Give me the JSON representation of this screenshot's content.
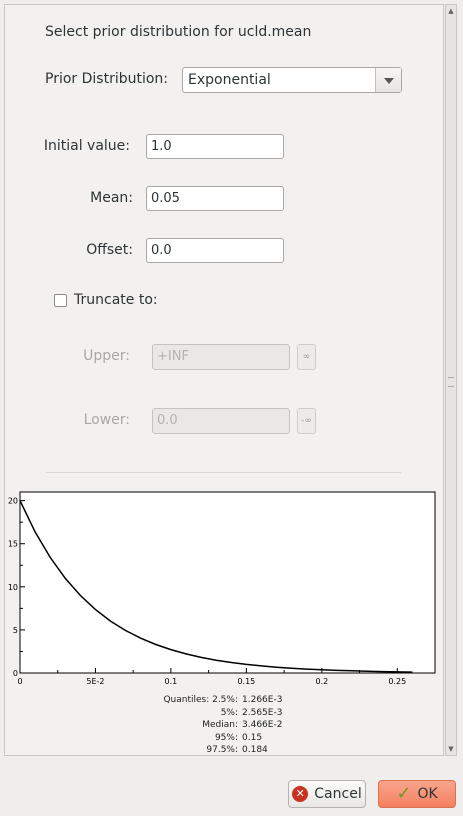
{
  "header": {
    "title": "Select prior distribution for ucld.mean"
  },
  "prior": {
    "label": "Prior Distribution:",
    "selected": "Exponential"
  },
  "params": {
    "initial": {
      "label": "Initial value:",
      "value": "1.0"
    },
    "mean": {
      "label": "Mean:",
      "value": "0.05"
    },
    "offset": {
      "label": "Offset:",
      "value": "0.0"
    }
  },
  "truncate": {
    "label": "Truncate to:",
    "checked": false,
    "upper": {
      "label": "Upper:",
      "value": "+INF",
      "button": "∞"
    },
    "lower": {
      "label": "Lower:",
      "value": "0.0",
      "button": "-∞"
    }
  },
  "chart_data": {
    "type": "line",
    "title": "",
    "xlabel": "",
    "ylabel": "",
    "xlim": [
      0,
      0.275
    ],
    "ylim": [
      0,
      21
    ],
    "xticks": [
      {
        "value": 0,
        "label": "0"
      },
      {
        "value": 0.05,
        "label": "5E-2"
      },
      {
        "value": 0.1,
        "label": "0.1"
      },
      {
        "value": 0.15,
        "label": "0.15"
      },
      {
        "value": 0.2,
        "label": "0.2"
      },
      {
        "value": 0.25,
        "label": "0.25"
      }
    ],
    "yticks": [
      {
        "value": 0,
        "label": "0"
      },
      {
        "value": 5,
        "label": "5"
      },
      {
        "value": 10,
        "label": "10"
      },
      {
        "value": 15,
        "label": "15"
      },
      {
        "value": 20,
        "label": "20"
      }
    ],
    "series": [
      {
        "values_x": [
          0,
          0.01,
          0.02,
          0.03,
          0.04,
          0.05,
          0.06,
          0.07,
          0.08,
          0.09,
          0.1,
          0.11,
          0.12,
          0.13,
          0.14,
          0.15,
          0.16,
          0.17,
          0.18,
          0.19,
          0.2,
          0.21,
          0.22,
          0.23,
          0.24,
          0.25,
          0.26
        ],
        "values_y": [
          20,
          16.37,
          13.41,
          10.98,
          8.99,
          7.36,
          6.02,
          4.93,
          4.04,
          3.31,
          2.71,
          2.22,
          1.81,
          1.49,
          1.22,
          1.0,
          0.82,
          0.67,
          0.55,
          0.45,
          0.37,
          0.3,
          0.25,
          0.2,
          0.16,
          0.13,
          0.11
        ]
      }
    ]
  },
  "quantiles": [
    {
      "label": "Quantiles: 2.5%:",
      "value": "1.266E-3"
    },
    {
      "label": "5%:",
      "value": "2.565E-3"
    },
    {
      "label": "Median:",
      "value": "3.466E-2"
    },
    {
      "label": "95%:",
      "value": "0.15"
    },
    {
      "label": "97.5%:",
      "value": "0.184"
    }
  ],
  "footer": {
    "cancel_label": "Cancel",
    "ok_label": "OK"
  }
}
